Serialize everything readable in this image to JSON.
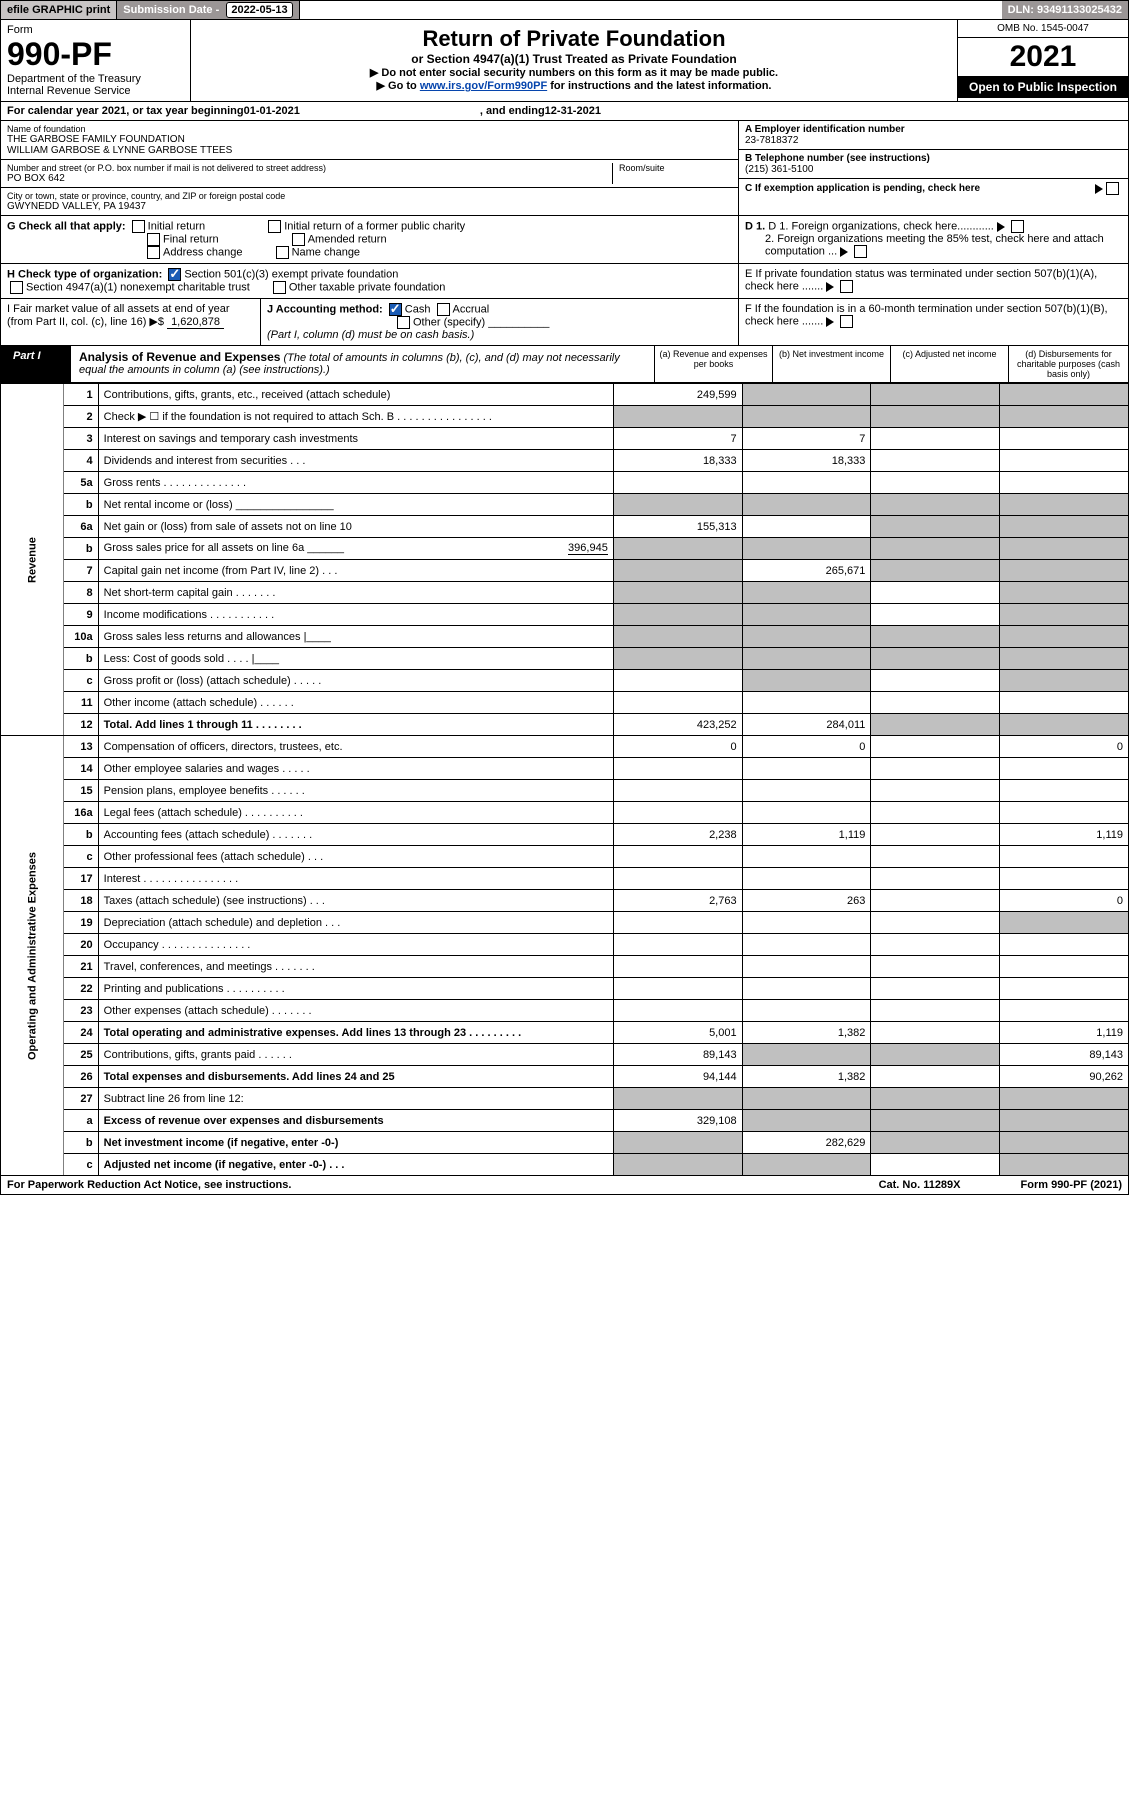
{
  "top": {
    "efile": "efile GRAPHIC print",
    "sub_label": "Submission Date - ",
    "sub_date": "2022-05-13",
    "dln_label": "DLN: ",
    "dln": "93491133025432"
  },
  "hdr": {
    "form_label": "Form",
    "form_num": "990-PF",
    "dept1": "Department of the Treasury",
    "dept2": "Internal Revenue Service",
    "title": "Return of Private Foundation",
    "subtitle": "or Section 4947(a)(1) Trust Treated as Private Foundation",
    "line1": "▶ Do not enter social security numbers on this form as it may be made public.",
    "line2a": "▶ Go to ",
    "line2_link": "www.irs.gov/Form990PF",
    "line2b": " for instructions and the latest information.",
    "omb": "OMB No. 1545-0047",
    "year": "2021",
    "open": "Open to Public Inspection"
  },
  "cal": {
    "a": "For calendar year 2021, or tax year beginning ",
    "b": "01-01-2021",
    "c": ", and ending ",
    "d": "12-31-2021"
  },
  "name": {
    "label": "Name of foundation",
    "l1": "THE GARBOSE FAMILY FOUNDATION",
    "l2": "WILLIAM GARBOSE & LYNNE GARBOSE TTEES"
  },
  "ein": {
    "label": "A Employer identification number",
    "val": "23-7818372"
  },
  "addr": {
    "label": "Number and street (or P.O. box number if mail is not delivered to street address)",
    "val": "PO BOX 642",
    "room_label": "Room/suite"
  },
  "tel": {
    "label": "B Telephone number (see instructions)",
    "val": "(215) 361-5100"
  },
  "city": {
    "label": "City or town, state or province, country, and ZIP or foreign postal code",
    "val": "GWYNEDD VALLEY, PA  19437"
  },
  "C": "C If exemption application is pending, check here",
  "G": {
    "label": "G Check all that apply:",
    "o1": "Initial return",
    "o2": "Final return",
    "o3": "Address change",
    "o4": "Initial return of a former public charity",
    "o5": "Amended return",
    "o6": "Name change"
  },
  "D1": "D 1. Foreign organizations, check here............",
  "D2": "2. Foreign organizations meeting the 85% test, check here and attach computation ...",
  "H": {
    "label": "H Check type of organization:",
    "o1": "Section 501(c)(3) exempt private foundation",
    "o2": "Section 4947(a)(1) nonexempt charitable trust",
    "o3": "Other taxable private foundation"
  },
  "E": "E If private foundation status was terminated under section 507(b)(1)(A), check here .......",
  "I": {
    "a": "I Fair market value of all assets at end of year (from Part II, col. (c), line 16) ▶$ ",
    "val": "1,620,878"
  },
  "J": {
    "label": "J Accounting method:",
    "o1": "Cash",
    "o2": "Accrual",
    "o3": "Other (specify)",
    "note": "(Part I, column (d) must be on cash basis.)"
  },
  "F": "F If the foundation is in a 60-month termination under section 507(b)(1)(B), check here .......",
  "part1": {
    "tag": "Part I",
    "title": "Analysis of Revenue and Expenses",
    "sub": " (The total of amounts in columns (b), (c), and (d) may not necessarily equal the amounts in column (a) (see instructions).)",
    "col_a": "(a) Revenue and expenses per books",
    "col_b": "(b) Net investment income",
    "col_c": "(c) Adjusted net income",
    "col_d": "(d) Disbursements for charitable purposes (cash basis only)"
  },
  "side": {
    "rev": "Revenue",
    "exp": "Operating and Administrative Expenses"
  },
  "rows": {
    "r1": {
      "n": "1",
      "d": "Contributions, gifts, grants, etc., received (attach schedule)",
      "a": "249,599"
    },
    "r2": {
      "n": "2",
      "d": "Check ▶ ☐ if the foundation is not required to attach Sch. B   .  .  .  .  .  .  .  .  .  .  .  .  .  .  .  ."
    },
    "r3": {
      "n": "3",
      "d": "Interest on savings and temporary cash investments",
      "a": "7",
      "b": "7"
    },
    "r4": {
      "n": "4",
      "d": "Dividends and interest from securities   .   .   .",
      "a": "18,333",
      "b": "18,333"
    },
    "r5a": {
      "n": "5a",
      "d": "Gross rents   .  .  .  .  .  .  .  .  .  .  .  .  .  ."
    },
    "r5b": {
      "n": "b",
      "d": "Net rental income or (loss)  ________________"
    },
    "r6a": {
      "n": "6a",
      "d": "Net gain or (loss) from sale of assets not on line 10",
      "a": "155,313"
    },
    "r6b": {
      "n": "b",
      "d": "Gross sales price for all assets on line 6a ______",
      "inline": "396,945"
    },
    "r7": {
      "n": "7",
      "d": "Capital gain net income (from Part IV, line 2)   .   .   .",
      "b": "265,671"
    },
    "r8": {
      "n": "8",
      "d": "Net short-term capital gain   .   .   .   .   .   .   ."
    },
    "r9": {
      "n": "9",
      "d": "Income modifications  .  .  .  .  .  .  .  .  .  .  ."
    },
    "r10a": {
      "n": "10a",
      "d": "Gross sales less returns and allowances |____"
    },
    "r10b": {
      "n": "b",
      "d": "Less: Cost of goods sold   .   .   .   .   |____"
    },
    "r10c": {
      "n": "c",
      "d": "Gross profit or (loss) (attach schedule)   .   .   .   .   ."
    },
    "r11": {
      "n": "11",
      "d": "Other income (attach schedule)   .   .   .   .   .   ."
    },
    "r12": {
      "n": "12",
      "d": "Total. Add lines 1 through 11   .   .   .   .   .   .   .   .",
      "bold": true,
      "a": "423,252",
      "b": "284,011"
    },
    "r13": {
      "n": "13",
      "d": "Compensation of officers, directors, trustees, etc.",
      "a": "0",
      "b": "0",
      "dd": "0"
    },
    "r14": {
      "n": "14",
      "d": "Other employee salaries and wages   .   .   .   .   ."
    },
    "r15": {
      "n": "15",
      "d": "Pension plans, employee benefits   .   .   .   .   .   ."
    },
    "r16a": {
      "n": "16a",
      "d": "Legal fees (attach schedule)  .  .  .  .  .  .  .  .  .  ."
    },
    "r16b": {
      "n": "b",
      "d": "Accounting fees (attach schedule)  .  .  .  .  .  .  .",
      "a": "2,238",
      "b": "1,119",
      "dd": "1,119"
    },
    "r16c": {
      "n": "c",
      "d": "Other professional fees (attach schedule)   .   .   ."
    },
    "r17": {
      "n": "17",
      "d": "Interest  .  .  .  .  .  .  .  .  .  .  .  .  .  .  .  ."
    },
    "r18": {
      "n": "18",
      "d": "Taxes (attach schedule) (see instructions)   .   .   .",
      "a": "2,763",
      "b": "263",
      "dd": "0"
    },
    "r19": {
      "n": "19",
      "d": "Depreciation (attach schedule) and depletion   .   .   ."
    },
    "r20": {
      "n": "20",
      "d": "Occupancy  .  .  .  .  .  .  .  .  .  .  .  .  .  .  ."
    },
    "r21": {
      "n": "21",
      "d": "Travel, conferences, and meetings  .  .  .  .  .  .  ."
    },
    "r22": {
      "n": "22",
      "d": "Printing and publications  .  .  .  .  .  .  .  .  .  ."
    },
    "r23": {
      "n": "23",
      "d": "Other expenses (attach schedule)  .  .  .  .  .  .  ."
    },
    "r24": {
      "n": "24",
      "d": "Total operating and administrative expenses. Add lines 13 through 23   .   .   .   .   .   .   .   .   .",
      "bold": true,
      "a": "5,001",
      "b": "1,382",
      "dd": "1,119"
    },
    "r25": {
      "n": "25",
      "d": "Contributions, gifts, grants paid   .   .   .   .   .   .",
      "a": "89,143",
      "dd": "89,143"
    },
    "r26": {
      "n": "26",
      "d": "Total expenses and disbursements. Add lines 24 and 25",
      "bold": true,
      "a": "94,144",
      "b": "1,382",
      "dd": "90,262"
    },
    "r27": {
      "n": "27",
      "d": "Subtract line 26 from line 12:"
    },
    "r27a": {
      "n": "a",
      "d": "Excess of revenue over expenses and disbursements",
      "bold": true,
      "a": "329,108"
    },
    "r27b": {
      "n": "b",
      "d": "Net investment income (if negative, enter -0-)",
      "bold": true,
      "b": "282,629"
    },
    "r27c": {
      "n": "c",
      "d": "Adjusted net income (if negative, enter -0-)   .   .   .",
      "bold": true
    }
  },
  "footer": {
    "a": "For Paperwork Reduction Act Notice, see instructions.",
    "b": "Cat. No. 11289X",
    "c": "Form 990-PF (2021)"
  }
}
